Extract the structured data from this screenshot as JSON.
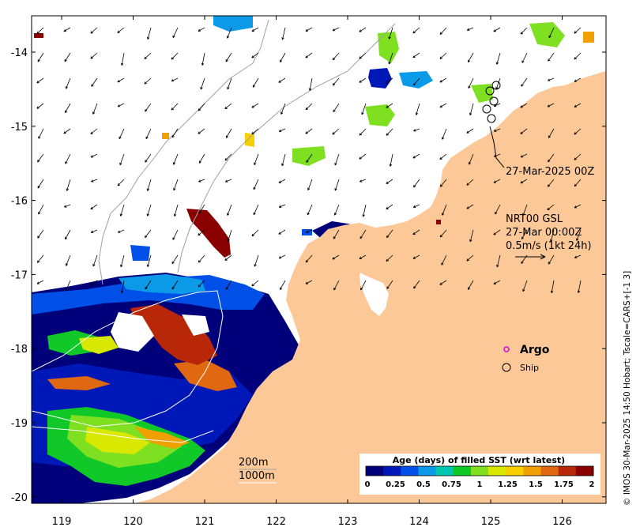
{
  "axes": {
    "x_ticks": [
      "119",
      "120",
      "121",
      "122",
      "123",
      "124",
      "125",
      "126"
    ],
    "y_ticks": [
      "-14",
      "-15",
      "-16",
      "-17",
      "-18",
      "-19",
      "-20"
    ]
  },
  "annotations": {
    "ship_time": "27-Mar-2025 00Z",
    "product": "NRT00 GSL",
    "product_time": "27-Mar 00:00Z",
    "arrow_scale": "0.5m/s (1kt 24h)"
  },
  "legend": {
    "argo": "Argo",
    "ship": "Ship",
    "argo_color": "#e000e0"
  },
  "contours": {
    "label_200": "200m",
    "label_1000": "1000m"
  },
  "colorbar": {
    "title": "Age (days) of filled SST (wrt latest)",
    "ticks": [
      "0",
      "0.25",
      "0.5",
      "0.75",
      "1",
      "1.25",
      "1.5",
      "1.75",
      "2"
    ],
    "colors": [
      "#00007a",
      "#0018b8",
      "#0050e8",
      "#0a9ae8",
      "#00c8b0",
      "#10c828",
      "#7ee020",
      "#d8e800",
      "#f8d000",
      "#f0a000",
      "#e06810",
      "#b82808",
      "#8a0000"
    ]
  },
  "credit": "© IMOS 30-Mar-2025 14:50 Hobart; Tscale=CARS+[-1 3]",
  "colors": {
    "land": "#fcc898",
    "ocean": "#ffffff"
  }
}
